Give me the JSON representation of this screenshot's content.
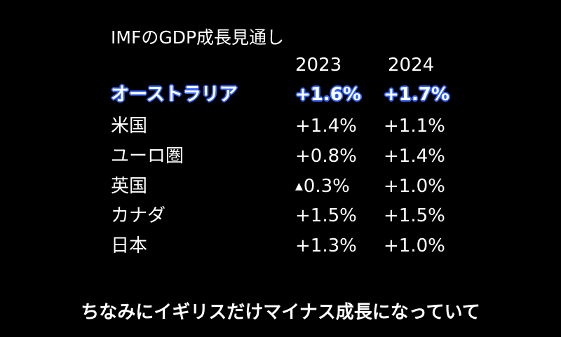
{
  "title": "IMFのGDP成長見通し",
  "years": [
    "2023",
    "2024"
  ],
  "rows": [
    {
      "country": "オーストラリア",
      "y2023": "+1.6%",
      "y2024": "+1.7%",
      "highlight": true
    },
    {
      "country": "米国",
      "y2023": "+1.4%",
      "y2024": "+1.1%",
      "highlight": false
    },
    {
      "country": "ユーロ圏",
      "y2023": "+0.8%",
      "y2024": "+1.4%",
      "highlight": false
    },
    {
      "country": "英国",
      "y2023_marker": "▲",
      "y2023": "0.3%",
      "y2024": "+1.0%",
      "highlight": false
    },
    {
      "country": "カナダ",
      "y2023": "+1.5%",
      "y2024": "+1.5%",
      "highlight": false
    },
    {
      "country": "日本",
      "y2023": "+1.3%",
      "y2024": "+1.0%",
      "highlight": false
    }
  ],
  "subtitle": "ちなみにイギリスだけマイナス成長になっていて",
  "colors": {
    "background": "#000000",
    "text": "#ffffff",
    "highlight_outline": "#3b6bff"
  }
}
